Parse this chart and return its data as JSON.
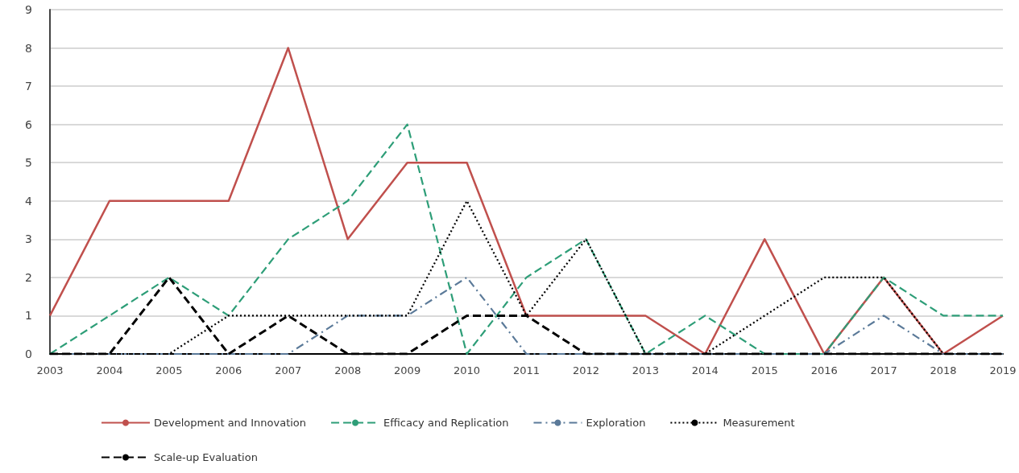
{
  "chart_data": {
    "type": "line",
    "categories": [
      "2003",
      "2004",
      "2005",
      "2006",
      "2007",
      "2008",
      "2009",
      "2010",
      "2011",
      "2012",
      "2013",
      "2014",
      "2015",
      "2016",
      "2017",
      "2018",
      "2019"
    ],
    "series": [
      {
        "name": "Development and Innovation",
        "color": "#c0504d",
        "line_style": "solid",
        "values": [
          1,
          4,
          4,
          4,
          8,
          3,
          5,
          5,
          1,
          1,
          1,
          0,
          3,
          0,
          2,
          0,
          1
        ]
      },
      {
        "name": "Efficacy and Replication",
        "color": "#2e9e78",
        "line_style": "dashed",
        "values": [
          0,
          1,
          2,
          1,
          3,
          4,
          6,
          0,
          2,
          3,
          0,
          1,
          0,
          0,
          2,
          1,
          1
        ]
      },
      {
        "name": "Exploration",
        "color": "#5b7a99",
        "line_style": "dashdot",
        "values": [
          0,
          0,
          0,
          0,
          0,
          1,
          1,
          2,
          0,
          0,
          0,
          0,
          0,
          0,
          1,
          0,
          0
        ]
      },
      {
        "name": "Measurement",
        "color": "#000000",
        "line_style": "dotted",
        "values": [
          0,
          0,
          0,
          1,
          1,
          1,
          1,
          4,
          1,
          3,
          0,
          0,
          1,
          2,
          2,
          0,
          0
        ]
      },
      {
        "name": "Scale-up Evaluation",
        "color": "#000000",
        "line_style": "dashed",
        "values": [
          0,
          0,
          2,
          0,
          1,
          0,
          0,
          1,
          1,
          0,
          0,
          0,
          0,
          0,
          0,
          0,
          0
        ]
      }
    ],
    "ylim": [
      0,
      9
    ],
    "yticks": [
      0,
      1,
      2,
      3,
      4,
      5,
      6,
      7,
      8,
      9
    ],
    "grid": "y",
    "legend": "bottom",
    "marker": "none"
  }
}
